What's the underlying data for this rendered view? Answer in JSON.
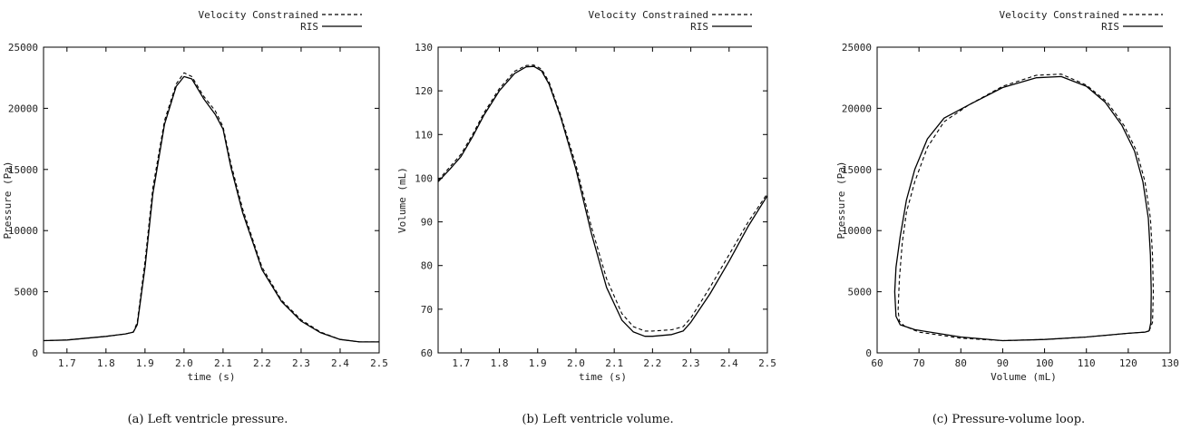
{
  "chart_data": [
    {
      "type": "line",
      "caption": "(a) Left ventricle pressure.",
      "xlabel": "time (s)",
      "ylabel": "Pressure (Pa)",
      "xlim": [
        1.64,
        2.5
      ],
      "ylim": [
        0,
        25000
      ],
      "xticks": [
        1.7,
        1.8,
        1.9,
        2.0,
        2.1,
        2.2,
        2.3,
        2.4,
        2.5
      ],
      "xtick_labels": [
        "1.7",
        "1.8",
        "1.9",
        "2.0",
        "2.1",
        "2.2",
        "2.3",
        "2.4",
        "2.5"
      ],
      "yticks": [
        0,
        5000,
        10000,
        15000,
        20000,
        25000
      ],
      "ytick_labels": [
        "0",
        "5000",
        "10000",
        "15000",
        "20000",
        "25000"
      ],
      "grid": false,
      "legend_position": "top-right",
      "series": [
        {
          "name": "Velocity Constrained",
          "style": "dashed",
          "x": [
            1.64,
            1.7,
            1.75,
            1.8,
            1.85,
            1.87,
            1.88,
            1.9,
            1.92,
            1.95,
            1.98,
            2.0,
            2.02,
            2.05,
            2.08,
            2.1,
            2.12,
            2.15,
            2.18,
            2.2,
            2.25,
            2.3,
            2.35,
            2.4,
            2.45,
            2.5
          ],
          "y": [
            1000,
            1050,
            1200,
            1350,
            1550,
            1700,
            2500,
            7500,
            13500,
            19000,
            22000,
            22900,
            22600,
            21000,
            19800,
            18500,
            15500,
            11800,
            8900,
            7000,
            4300,
            2700,
            1700,
            1100,
            900,
            900
          ]
        },
        {
          "name": "RIS",
          "style": "solid",
          "x": [
            1.64,
            1.7,
            1.75,
            1.8,
            1.85,
            1.87,
            1.88,
            1.9,
            1.92,
            1.95,
            1.98,
            2.0,
            2.02,
            2.05,
            2.08,
            2.1,
            2.12,
            2.15,
            2.18,
            2.2,
            2.25,
            2.3,
            2.35,
            2.4,
            2.45,
            2.5
          ],
          "y": [
            1000,
            1050,
            1200,
            1350,
            1550,
            1700,
            2300,
            7000,
            13000,
            18700,
            21800,
            22600,
            22400,
            20800,
            19500,
            18300,
            15200,
            11500,
            8700,
            6800,
            4200,
            2600,
            1650,
            1100,
            900,
            900
          ]
        }
      ]
    },
    {
      "type": "line",
      "caption": "(b) Left ventricle volume.",
      "xlabel": "time (s)",
      "ylabel": "Volume (mL)",
      "xlim": [
        1.64,
        2.5
      ],
      "ylim": [
        60,
        130
      ],
      "xticks": [
        1.7,
        1.8,
        1.9,
        2.0,
        2.1,
        2.2,
        2.3,
        2.4,
        2.5
      ],
      "xtick_labels": [
        "1.7",
        "1.8",
        "1.9",
        "2.0",
        "2.1",
        "2.2",
        "2.3",
        "2.4",
        "2.5"
      ],
      "yticks": [
        60,
        70,
        80,
        90,
        100,
        110,
        120,
        130
      ],
      "ytick_labels": [
        "60",
        "70",
        "80",
        "90",
        "100",
        "110",
        "120",
        "130"
      ],
      "grid": false,
      "legend_position": "top-right",
      "series": [
        {
          "name": "Velocity Constrained",
          "style": "dashed",
          "x": [
            1.64,
            1.67,
            1.7,
            1.73,
            1.76,
            1.8,
            1.84,
            1.87,
            1.89,
            1.91,
            1.93,
            1.96,
            2.0,
            2.04,
            2.08,
            2.12,
            2.15,
            2.18,
            2.2,
            2.25,
            2.28,
            2.3,
            2.35,
            2.4,
            2.45,
            2.5
          ],
          "y": [
            99.5,
            102.5,
            105.5,
            110,
            115,
            120.5,
            124.5,
            125.8,
            125.9,
            125,
            122,
            114.5,
            103,
            89,
            77,
            69,
            66,
            65,
            65,
            65.3,
            66,
            68,
            75,
            82.5,
            90,
            96.5
          ]
        },
        {
          "name": "RIS",
          "style": "solid",
          "x": [
            1.64,
            1.67,
            1.7,
            1.73,
            1.76,
            1.8,
            1.84,
            1.87,
            1.89,
            1.91,
            1.93,
            1.96,
            2.0,
            2.04,
            2.08,
            2.12,
            2.15,
            2.18,
            2.2,
            2.25,
            2.28,
            2.3,
            2.35,
            2.4,
            2.45,
            2.5
          ],
          "y": [
            99.2,
            102,
            105,
            109.5,
            114.5,
            120,
            124,
            125.5,
            125.6,
            124.6,
            121.5,
            114,
            102,
            87.5,
            75,
            67.5,
            64.8,
            63.8,
            63.8,
            64.2,
            65,
            67,
            73.5,
            81,
            89,
            96
          ]
        }
      ]
    },
    {
      "type": "line",
      "caption": "(c) Pressure-volume loop.",
      "xlabel": "Volume (mL)",
      "ylabel": "Pressure (Pa)",
      "xlim": [
        60,
        130
      ],
      "ylim": [
        0,
        25000
      ],
      "xticks": [
        60,
        70,
        80,
        90,
        100,
        110,
        120,
        130
      ],
      "xtick_labels": [
        "60",
        "70",
        "80",
        "90",
        "100",
        "110",
        "120",
        "130"
      ],
      "yticks": [
        0,
        5000,
        10000,
        15000,
        20000,
        25000
      ],
      "ytick_labels": [
        "0",
        "5000",
        "10000",
        "15000",
        "20000",
        "25000"
      ],
      "grid": false,
      "legend_position": "top-right",
      "series": [
        {
          "name": "Velocity Constrained",
          "style": "dashed",
          "x": [
            125,
            125.8,
            126,
            125.8,
            125.3,
            124,
            122,
            119,
            115,
            110,
            104,
            98,
            90,
            82,
            76,
            72,
            69,
            67,
            66,
            65.3,
            65,
            65.3,
            66.5,
            70,
            80,
            90,
            100,
            110,
            120,
            124,
            125
          ],
          "y": [
            1800,
            2500,
            5000,
            8000,
            11000,
            14000,
            16500,
            18600,
            20500,
            21900,
            22800,
            22700,
            21800,
            20300,
            18900,
            16800,
            14000,
            11500,
            9000,
            6000,
            3500,
            2600,
            2200,
            1700,
            1200,
            1000,
            1100,
            1300,
            1600,
            1700,
            1800
          ]
        },
        {
          "name": "RIS",
          "style": "solid",
          "x": [
            125,
            125.4,
            125.5,
            125.3,
            124.8,
            123.5,
            121.5,
            118.5,
            114.5,
            110,
            104,
            98,
            90,
            82,
            76,
            72,
            69,
            67,
            65.5,
            64.5,
            64.2,
            64.5,
            65.5,
            69,
            80,
            90,
            100,
            110,
            120,
            124,
            125
          ],
          "y": [
            1800,
            2500,
            5000,
            8000,
            11000,
            14000,
            16500,
            18600,
            20500,
            21800,
            22600,
            22500,
            21700,
            20300,
            19200,
            17500,
            15000,
            12500,
            9500,
            7000,
            5000,
            3000,
            2300,
            1900,
            1300,
            1000,
            1100,
            1300,
            1600,
            1700,
            1800
          ]
        }
      ]
    }
  ]
}
